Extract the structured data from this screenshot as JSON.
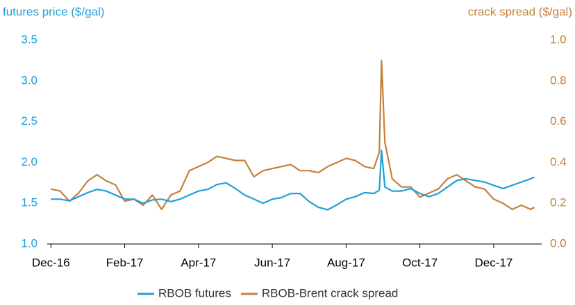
{
  "chart_data": {
    "type": "line",
    "y_label": "futures price ($/gal)",
    "y2_label": "crack spread ($/gal)",
    "x": [
      0,
      0.25,
      0.5,
      0.75,
      1,
      1.25,
      1.5,
      1.75,
      2,
      2.25,
      2.5,
      2.75,
      3,
      3.25,
      3.5,
      3.75,
      4,
      4.25,
      4.5,
      4.75,
      5,
      5.25,
      5.5,
      5.75,
      6,
      6.25,
      6.5,
      6.75,
      7,
      7.25,
      7.5,
      7.75,
      8,
      8.25,
      8.5,
      8.75,
      8.9,
      8.96,
      9.05,
      9.25,
      9.5,
      9.75,
      10,
      10.25,
      10.5,
      10.75,
      11,
      11.25,
      11.5,
      11.75,
      12,
      12.25,
      12.5,
      12.75,
      13,
      13.1
    ],
    "series": [
      {
        "name": "RBOB futures",
        "color": "#1f9fd8",
        "values": [
          1.55,
          1.55,
          1.53,
          1.58,
          1.63,
          1.67,
          1.65,
          1.6,
          1.55,
          1.55,
          1.5,
          1.54,
          1.55,
          1.52,
          1.55,
          1.6,
          1.65,
          1.67,
          1.73,
          1.75,
          1.68,
          1.6,
          1.55,
          1.5,
          1.55,
          1.57,
          1.62,
          1.62,
          1.52,
          1.45,
          1.42,
          1.48,
          1.55,
          1.58,
          1.63,
          1.62,
          1.66,
          2.15,
          1.7,
          1.65,
          1.65,
          1.68,
          1.62,
          1.58,
          1.62,
          1.7,
          1.78,
          1.8,
          1.78,
          1.76,
          1.72,
          1.68,
          1.72,
          1.76,
          1.8,
          1.82
        ]
      },
      {
        "name": "RBOB-Brent crack spread",
        "color": "#c4803a",
        "axis": "y2",
        "values": [
          0.27,
          0.26,
          0.21,
          0.25,
          0.31,
          0.34,
          0.31,
          0.29,
          0.21,
          0.22,
          0.19,
          0.24,
          0.17,
          0.24,
          0.26,
          0.36,
          0.38,
          0.4,
          0.43,
          0.42,
          0.41,
          0.41,
          0.33,
          0.36,
          0.37,
          0.38,
          0.39,
          0.36,
          0.36,
          0.35,
          0.38,
          0.4,
          0.42,
          0.41,
          0.38,
          0.37,
          0.45,
          0.9,
          0.5,
          0.32,
          0.28,
          0.28,
          0.23,
          0.25,
          0.27,
          0.32,
          0.34,
          0.31,
          0.28,
          0.27,
          0.22,
          0.2,
          0.17,
          0.19,
          0.17,
          0.18
        ]
      }
    ],
    "xlim": [
      -0.1,
      13.3
    ],
    "xticks": [
      {
        "value": 0,
        "label": "Dec-16"
      },
      {
        "value": 2,
        "label": "Feb-17"
      },
      {
        "value": 4,
        "label": "Apr-17"
      },
      {
        "value": 6,
        "label": "Jun-17"
      },
      {
        "value": 8,
        "label": "Aug-17"
      },
      {
        "value": 10,
        "label": "Oct-17"
      },
      {
        "value": 12,
        "label": "Dec-17"
      }
    ],
    "ylim": [
      1.0,
      3.5
    ],
    "yticks": [
      {
        "value": 1.0,
        "label": "1.0"
      },
      1.5,
      {
        "value": 2.0,
        "label": "2.0"
      },
      2.5,
      {
        "value": 3.0,
        "label": "3.0"
      },
      3.5
    ],
    "y2lim": [
      0.0,
      1.0
    ],
    "y2ticks": [
      {
        "value": 0.0,
        "label": "0.0"
      },
      0.2,
      0.4,
      0.6,
      0.8,
      {
        "value": 1.0,
        "label": "1.0"
      }
    ],
    "grid": false,
    "legend": "bottom"
  }
}
